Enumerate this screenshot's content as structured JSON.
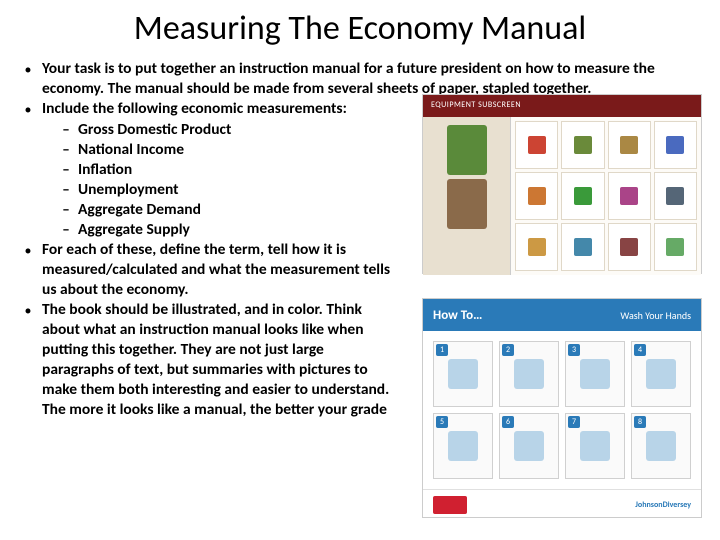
{
  "title": "Measuring The Economy Manual",
  "bullets": [
    {
      "text": "Your task is to put together an instruction manual for a future president on how to measure the economy. The manual should be made from several sheets of paper, stapled together.",
      "narrow": false
    },
    {
      "text": "Include the following economic measurements:",
      "narrow": false,
      "subs": [
        "Gross Domestic Product",
        "National Income",
        "Inflation",
        "Unemployment",
        "Aggregate Demand",
        "Aggregate Supply"
      ]
    },
    {
      "text": "For each of these, define the term, tell how it is measured/calculated and what the measurement tells us about the economy.",
      "narrow": true
    },
    {
      "text": "The book should be illustrated, and in color. Think about what an instruction manual looks like when putting this together. They are not just large paragraphs of text, but summaries with pictures to make them both interesting and easier to understand. The more it looks like a manual, the better your grade",
      "narrow": true
    }
  ],
  "image1": {
    "header": "EQUIPMENT SUBSCREEN",
    "item_colors": [
      "#cc4433",
      "#6a8a3a",
      "#aa8844",
      "#4a6abf",
      "#cc7733",
      "#3a9a3a",
      "#aa4488",
      "#556677",
      "#cc9944",
      "#4488aa",
      "#884444",
      "#66aa66"
    ]
  },
  "image2": {
    "title": "How To…",
    "subtitle": "Wash Your Hands",
    "steps": [
      "1",
      "2",
      "3",
      "4",
      "5",
      "6",
      "7",
      "8"
    ],
    "footer_right": "JohnsonDiversey"
  }
}
